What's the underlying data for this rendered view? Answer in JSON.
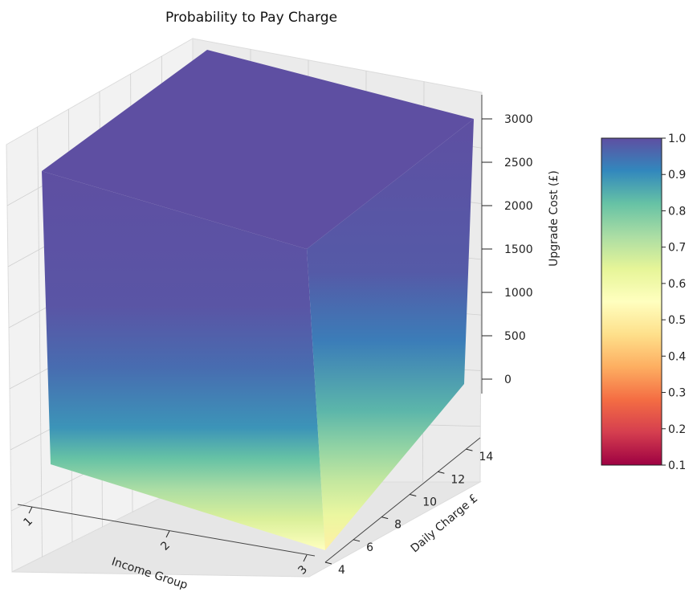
{
  "chart_data": {
    "type": "3d-scatter",
    "title": "Probability to Pay Charge",
    "x_axis": {
      "label": "Income Group",
      "ticks": [
        "1",
        "2",
        "3"
      ],
      "range": [
        1,
        3
      ]
    },
    "y_axis": {
      "label": "Daily Charge £",
      "ticks": [
        "4",
        "6",
        "8",
        "10",
        "12",
        "14"
      ],
      "range": [
        4,
        15
      ]
    },
    "z_axis": {
      "label": "Upgrade Cost (£)",
      "ticks": [
        "0",
        "500",
        "1000",
        "1500",
        "2000",
        "2500",
        "3000"
      ],
      "range": [
        0,
        3100
      ]
    },
    "colorbar": {
      "colormap": "Spectral",
      "ticks": [
        "0.1",
        "0.2",
        "0.3",
        "0.4",
        "0.5",
        "0.6",
        "0.7",
        "0.8",
        "0.9",
        "1.0"
      ],
      "range": [
        0.1,
        1.0
      ]
    },
    "color_value_by_upgrade_cost": [
      {
        "z": 0,
        "front_face": 0.5,
        "side_face": 0.45
      },
      {
        "z": 250,
        "front_face": 0.62,
        "side_face": 0.58
      },
      {
        "z": 500,
        "front_face": 0.7,
        "side_face": 0.66
      },
      {
        "z": 750,
        "front_face": 0.8,
        "side_face": 0.74
      },
      {
        "z": 1000,
        "front_face": 0.88,
        "side_face": 0.82
      },
      {
        "z": 1500,
        "front_face": 0.95,
        "side_face": 0.92
      },
      {
        "z": 2000,
        "front_face": 0.99,
        "side_face": 0.98
      },
      {
        "z": 3100,
        "front_face": 1.0,
        "side_face": 1.0
      }
    ],
    "grid": true,
    "colors": {
      "spectral_stops": [
        "#9e0142",
        "#d53e4f",
        "#f46d43",
        "#fdae61",
        "#fee08b",
        "#ffffbf",
        "#e6f598",
        "#abdda4",
        "#66c2a5",
        "#3288bd",
        "#5e4fa2"
      ]
    }
  }
}
